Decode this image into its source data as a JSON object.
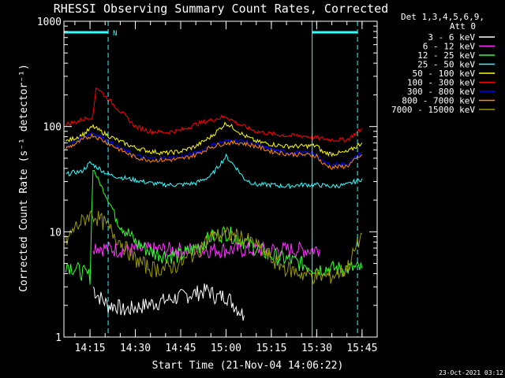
{
  "chart_data": {
    "type": "line",
    "title": "RHESSI Observing Summary Count Rates, Corrected",
    "xlabel": "Start Time (21-Nov-04 14:06:22)",
    "ylabel": "Corrected Count Rate (s⁻¹ detector⁻¹)",
    "y_scale": "log",
    "ylim": [
      1,
      1000
    ],
    "y_ticks": [
      1,
      10,
      100,
      1000
    ],
    "y_tick_labels": [
      "1",
      "10",
      "100",
      "1000"
    ],
    "xlim": [
      "14:06:22",
      "15:50:00"
    ],
    "x_ticks": [
      "14:15",
      "14:30",
      "14:45",
      "15:00",
      "15:15",
      "15:30",
      "15:45"
    ],
    "legend_header": [
      "Det 1,3,4,5,6,9,",
      "Att 0"
    ],
    "legend_position": "right",
    "footer_timestamp": "23-Oct-2021 03:12",
    "night_marker": "N",
    "night_intervals": [
      [
        "14:06:22",
        "14:21:00"
      ],
      [
        "15:28:30",
        "15:43:30"
      ]
    ],
    "dashed_markers": [
      "14:21:00",
      "15:43:30"
    ],
    "solid_markers": [
      "14:06:22",
      "15:28:30"
    ],
    "series": [
      {
        "name": "3 - 6 keV",
        "color": "#ffffff",
        "x": [
          "14:16",
          "14:17",
          "14:19",
          "14:21",
          "14:24",
          "14:26",
          "14:54",
          "14:57",
          "15:00",
          "15:03",
          "15:06"
        ],
        "y": [
          3.0,
          2.6,
          2.3,
          2.0,
          2.0,
          1.8,
          2.8,
          2.4,
          2.5,
          2.0,
          1.6
        ]
      },
      {
        "name": "6 - 12 keV",
        "color": "#ff33ff",
        "x": [
          "14:16",
          "14:20",
          "14:25",
          "14:35",
          "14:45",
          "14:55",
          "15:05",
          "15:15",
          "15:25",
          "15:31"
        ],
        "y": [
          7.5,
          7.0,
          6.8,
          6.8,
          6.8,
          6.8,
          6.8,
          6.8,
          6.8,
          6.8
        ]
      },
      {
        "name": "12 - 25 keV",
        "color": "#33ff33",
        "x": [
          "14:07",
          "14:15",
          "14:16",
          "14:18",
          "14:21",
          "14:25",
          "14:30",
          "14:35",
          "14:40",
          "14:45",
          "14:50",
          "14:55",
          "15:00",
          "15:05",
          "15:10",
          "15:15",
          "15:20",
          "15:25",
          "15:30",
          "15:35",
          "15:40",
          "15:45"
        ],
        "y": [
          5.0,
          3.8,
          40,
          30,
          20,
          12,
          8,
          6.5,
          6.0,
          6.0,
          7.0,
          9.0,
          10,
          8.5,
          7.0,
          6.0,
          5.5,
          5.0,
          4.5,
          4.5,
          4.5,
          4.5
        ]
      },
      {
        "name": "25 - 50 keV",
        "color": "#33ffff",
        "x": [
          "14:07",
          "14:10",
          "14:12",
          "14:15",
          "14:18",
          "14:21",
          "14:25",
          "14:30",
          "14:35",
          "14:40",
          "14:45",
          "14:50",
          "14:55",
          "15:00",
          "15:03",
          "15:06",
          "15:10",
          "15:15",
          "15:20",
          "15:25",
          "15:30",
          "15:35",
          "15:40",
          "15:45"
        ],
        "y": [
          35,
          37,
          37,
          45,
          40,
          35,
          33,
          31,
          29,
          28,
          28,
          29,
          34,
          52,
          42,
          32,
          28,
          28,
          27,
          28,
          28,
          27,
          28,
          32
        ]
      },
      {
        "name": "50 - 100 keV",
        "color": "#ffff00",
        "x": [
          "14:07",
          "14:10",
          "14:13",
          "14:16",
          "14:18",
          "14:21",
          "14:25",
          "14:30",
          "14:35",
          "14:40",
          "14:45",
          "14:50",
          "14:55",
          "15:00",
          "15:03",
          "15:06",
          "15:10",
          "15:15",
          "15:20",
          "15:25",
          "15:30",
          "15:32",
          "15:35",
          "15:40",
          "15:45"
        ],
        "y": [
          72,
          78,
          85,
          100,
          92,
          82,
          72,
          63,
          58,
          56,
          58,
          65,
          80,
          108,
          95,
          82,
          72,
          68,
          65,
          65,
          66,
          57,
          55,
          57,
          70
        ]
      },
      {
        "name": "100 - 300 keV",
        "color": "#ff0000",
        "x": [
          "14:07",
          "14:10",
          "14:13",
          "14:16",
          "14:17",
          "14:20",
          "14:25",
          "14:30",
          "14:35",
          "14:40",
          "14:45",
          "14:50",
          "14:55",
          "15:00",
          "15:03",
          "15:06",
          "15:10",
          "15:15",
          "15:20",
          "15:25",
          "15:30",
          "15:35",
          "15:40",
          "15:45"
        ],
        "y": [
          105,
          110,
          118,
          125,
          240,
          195,
          140,
          100,
          90,
          88,
          92,
          105,
          115,
          125,
          110,
          100,
          90,
          85,
          82,
          82,
          78,
          75,
          75,
          95
        ]
      },
      {
        "name": "300 - 800 keV",
        "color": "#0000ff",
        "x": [
          "14:07",
          "14:10",
          "14:13",
          "14:16",
          "14:20",
          "14:25",
          "14:30",
          "14:35",
          "14:40",
          "14:45",
          "14:50",
          "14:55",
          "15:00",
          "15:05",
          "15:10",
          "15:15",
          "15:20",
          "15:25",
          "15:30",
          "15:32",
          "15:35",
          "15:40",
          "15:45"
        ],
        "y": [
          65,
          72,
          80,
          88,
          75,
          62,
          53,
          50,
          50,
          51,
          56,
          66,
          73,
          73,
          68,
          60,
          57,
          56,
          55,
          46,
          43,
          44,
          57
        ]
      },
      {
        "name": "800 - 7000 keV",
        "color": "#ff8800",
        "x": [
          "14:07",
          "14:10",
          "14:13",
          "14:16",
          "14:20",
          "14:25",
          "14:30",
          "14:35",
          "14:40",
          "14:45",
          "14:50",
          "14:55",
          "15:00",
          "15:05",
          "15:10",
          "15:15",
          "15:20",
          "15:25",
          "15:30",
          "15:32",
          "15:35",
          "15:40",
          "15:45"
        ],
        "y": [
          62,
          68,
          76,
          83,
          72,
          60,
          51,
          48,
          48,
          49,
          54,
          64,
          70,
          70,
          65,
          58,
          55,
          54,
          53,
          44,
          41,
          42,
          54
        ]
      },
      {
        "name": "7000 - 15000 keV",
        "color": "#999900",
        "x": [
          "14:07",
          "14:10",
          "14:13",
          "14:15",
          "14:17",
          "14:20",
          "14:23",
          "14:26",
          "14:30",
          "14:35",
          "14:40",
          "14:45",
          "14:50",
          "14:55",
          "15:00",
          "15:05",
          "15:10",
          "15:15",
          "15:20",
          "15:25",
          "15:30",
          "15:35",
          "15:40",
          "15:45"
        ],
        "y": [
          8.0,
          11,
          13,
          15,
          14,
          12,
          9.5,
          7.5,
          5.5,
          4.5,
          4.5,
          5.0,
          6.5,
          9.0,
          9.5,
          9.0,
          7.5,
          5.5,
          4.5,
          4.0,
          3.8,
          3.8,
          4.5,
          9.5
        ]
      }
    ]
  }
}
